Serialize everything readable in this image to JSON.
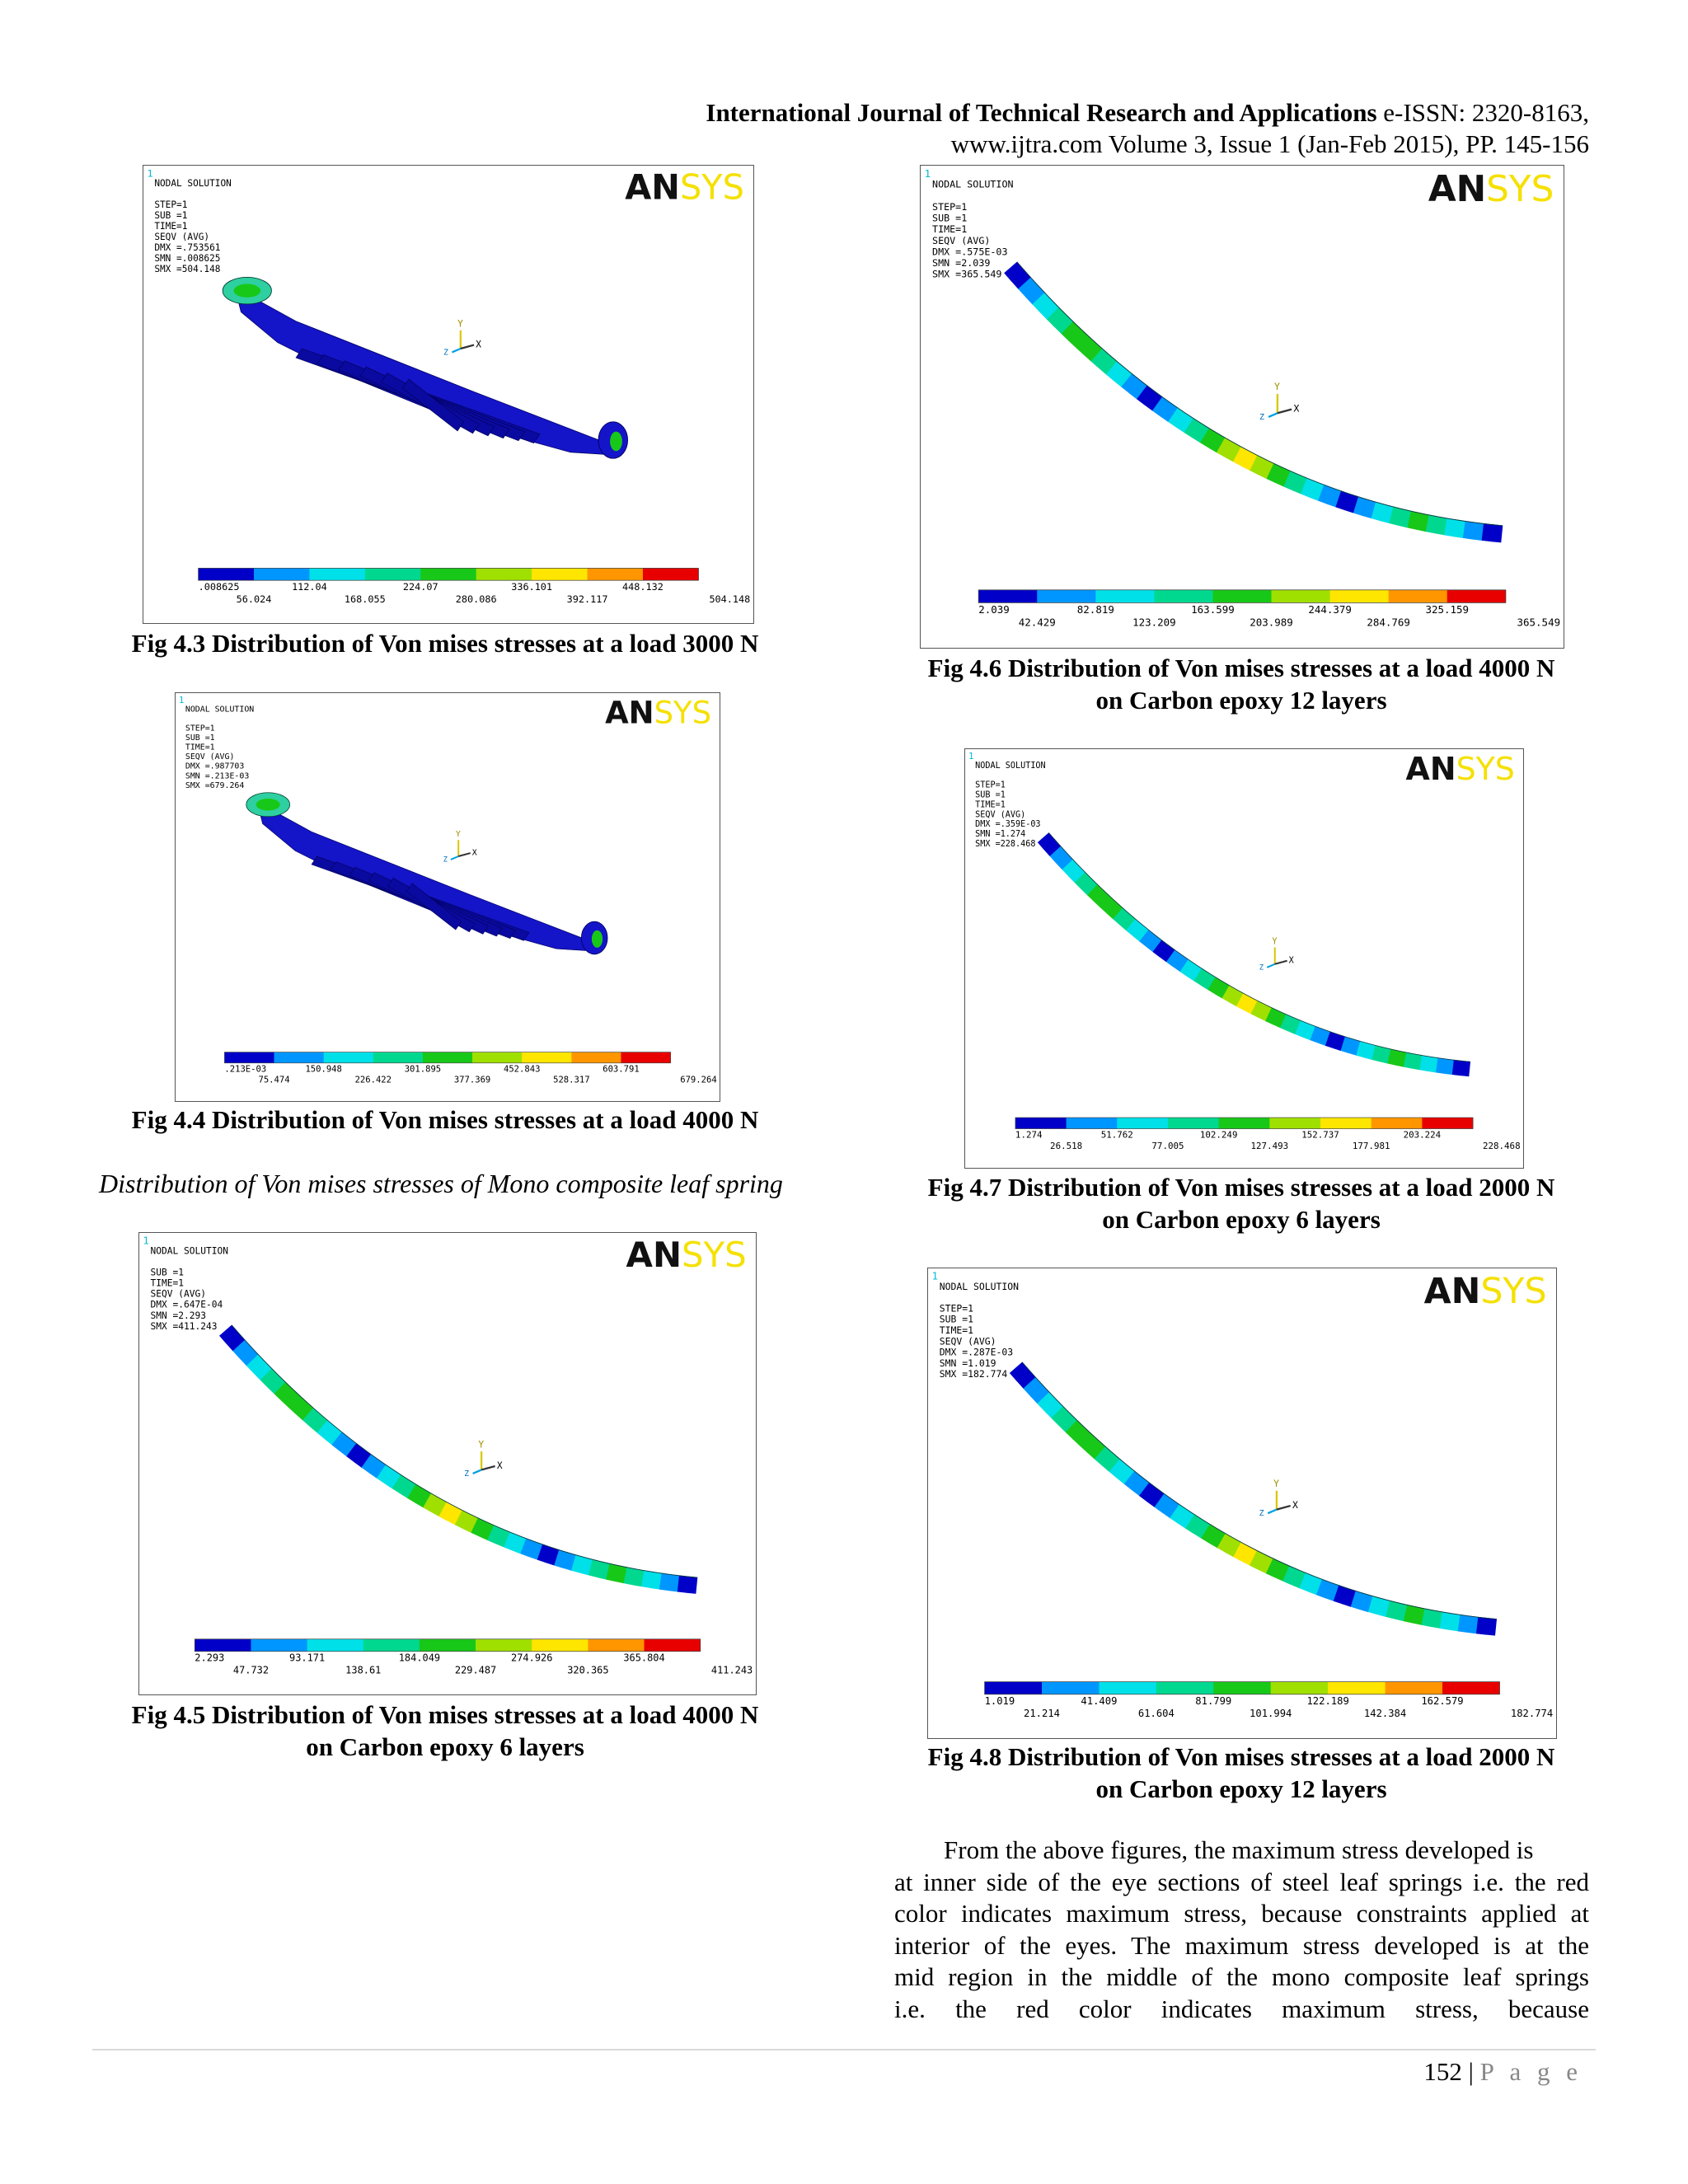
{
  "header": {
    "journal_bold": "International Journal of Technical Research and Applications",
    "journal_rest": " e-ISSN: 2320-8163,",
    "line2": "www.ijtra.com Volume 3, Issue 1 (Jan-Feb 2015), PP. 145-156"
  },
  "colors": {
    "contour": [
      "#0000c8",
      "#0096ff",
      "#00e0e8",
      "#00d890",
      "#18c818",
      "#a0e000",
      "#ffe600",
      "#ff9600",
      "#e80000"
    ],
    "ansys_dark": "#111111",
    "ansys_yellow": "#f5e000",
    "corner_mark": "#00bcd4"
  },
  "figures": [
    {
      "id": "4.3",
      "shape": "steel",
      "info": [
        "NODAL SOLUTION",
        "",
        "STEP=1",
        "SUB =1",
        "TIME=1",
        "SEQV      (AVG)",
        "DMX =.753561",
        "SMN =.008625",
        "SMX =504.148"
      ],
      "legend_top": [
        ".008625",
        "112.04",
        "224.07",
        "336.101",
        "448.132"
      ],
      "legend_bottom": [
        "56.024",
        "168.055",
        "280.086",
        "392.117",
        "504.148"
      ],
      "caption": [
        "Fig 4.3 Distribution of Von mises stresses at a load 3000 N"
      ]
    },
    {
      "id": "4.4",
      "shape": "steel",
      "info": [
        "NODAL SOLUTION",
        "",
        "STEP=1",
        "SUB =1",
        "TIME=1",
        "SEQV      (AVG)",
        "DMX =.987703",
        "SMN =.213E-03",
        "SMX =679.264"
      ],
      "legend_top": [
        ".213E-03",
        "150.948",
        "301.895",
        "452.843",
        "603.791"
      ],
      "legend_bottom": [
        "75.474",
        "226.422",
        "377.369",
        "528.317",
        "679.264"
      ],
      "caption": [
        "Fig 4.4 Distribution of Von mises stresses at a load 4000 N"
      ]
    },
    {
      "id": "4.5",
      "shape": "mono",
      "info": [
        "NODAL SOLUTION",
        "",
        "SUB =1",
        "TIME=1",
        "SEQV      (AVG)",
        "DMX =.647E-04",
        "SMN =2.293",
        "SMX =411.243"
      ],
      "legend_top": [
        "2.293",
        "93.171",
        "184.049",
        "274.926",
        "365.804"
      ],
      "legend_bottom": [
        "47.732",
        "138.61",
        "229.487",
        "320.365",
        "411.243"
      ],
      "caption": [
        "Fig 4.5 Distribution of Von mises stresses at a load 4000 N",
        "on Carbon epoxy 6 layers"
      ]
    },
    {
      "id": "4.6",
      "shape": "mono",
      "info": [
        "NODAL SOLUTION",
        "",
        "STEP=1",
        "SUB =1",
        "TIME=1",
        "SEQV      (AVG)",
        "DMX =.575E-03",
        "SMN =2.039",
        "SMX =365.549"
      ],
      "legend_top": [
        "2.039",
        "82.819",
        "163.599",
        "244.379",
        "325.159"
      ],
      "legend_bottom": [
        "42.429",
        "123.209",
        "203.989",
        "284.769",
        "365.549"
      ],
      "caption": [
        "Fig 4.6 Distribution of Von mises stresses at a load 4000 N",
        "on Carbon epoxy 12 layers"
      ]
    },
    {
      "id": "4.7",
      "shape": "mono",
      "info": [
        "NODAL SOLUTION",
        "",
        "STEP=1",
        "SUB =1",
        "TIME=1",
        "SEQV      (AVG)",
        "DMX =.359E-03",
        "SMN =1.274",
        "SMX =228.468"
      ],
      "legend_top": [
        "1.274",
        "51.762",
        "102.249",
        "152.737",
        "203.224"
      ],
      "legend_bottom": [
        "26.518",
        "77.005",
        "127.493",
        "177.981",
        "228.468"
      ],
      "caption": [
        "Fig 4.7 Distribution of Von mises stresses at a load 2000 N",
        "on Carbon epoxy 6 layers"
      ]
    },
    {
      "id": "4.8",
      "shape": "mono",
      "info": [
        "NODAL SOLUTION",
        "",
        "STEP=1",
        "SUB =1",
        "TIME=1",
        "SEQV      (AVG)",
        "DMX =.287E-03",
        "SMN =1.019",
        "SMX =182.774"
      ],
      "legend_top": [
        "1.019",
        "41.409",
        "81.799",
        "122.189",
        "162.579"
      ],
      "legend_bottom": [
        "21.214",
        "61.604",
        "101.994",
        "142.384",
        "182.774"
      ],
      "caption": [
        "Fig 4.8 Distribution of Von mises stresses at a load 2000 N",
        "on Carbon epoxy 12 layers"
      ]
    }
  ],
  "ansys_logo": {
    "an": "AN",
    "sys": "SYS"
  },
  "corner_mark": "1",
  "axis": {
    "x": "X",
    "y": "Y",
    "z": "Z"
  },
  "section_label": "Distribution of Von mises stresses of Mono composite leaf spring",
  "body_lines": [
    "From the above figures, the maximum stress developed is",
    "at inner side of the eye sections of steel leaf springs i.e. the red",
    "color indicates maximum stress, because constraints applied at",
    "interior of the eyes. The maximum stress developed is at the",
    "mid region in the middle of the mono composite leaf springs",
    "i.e. the red color indicates maximum stress, because"
  ],
  "footer": {
    "page_number": "152",
    "separator": "|",
    "page_word": "P a g e"
  }
}
